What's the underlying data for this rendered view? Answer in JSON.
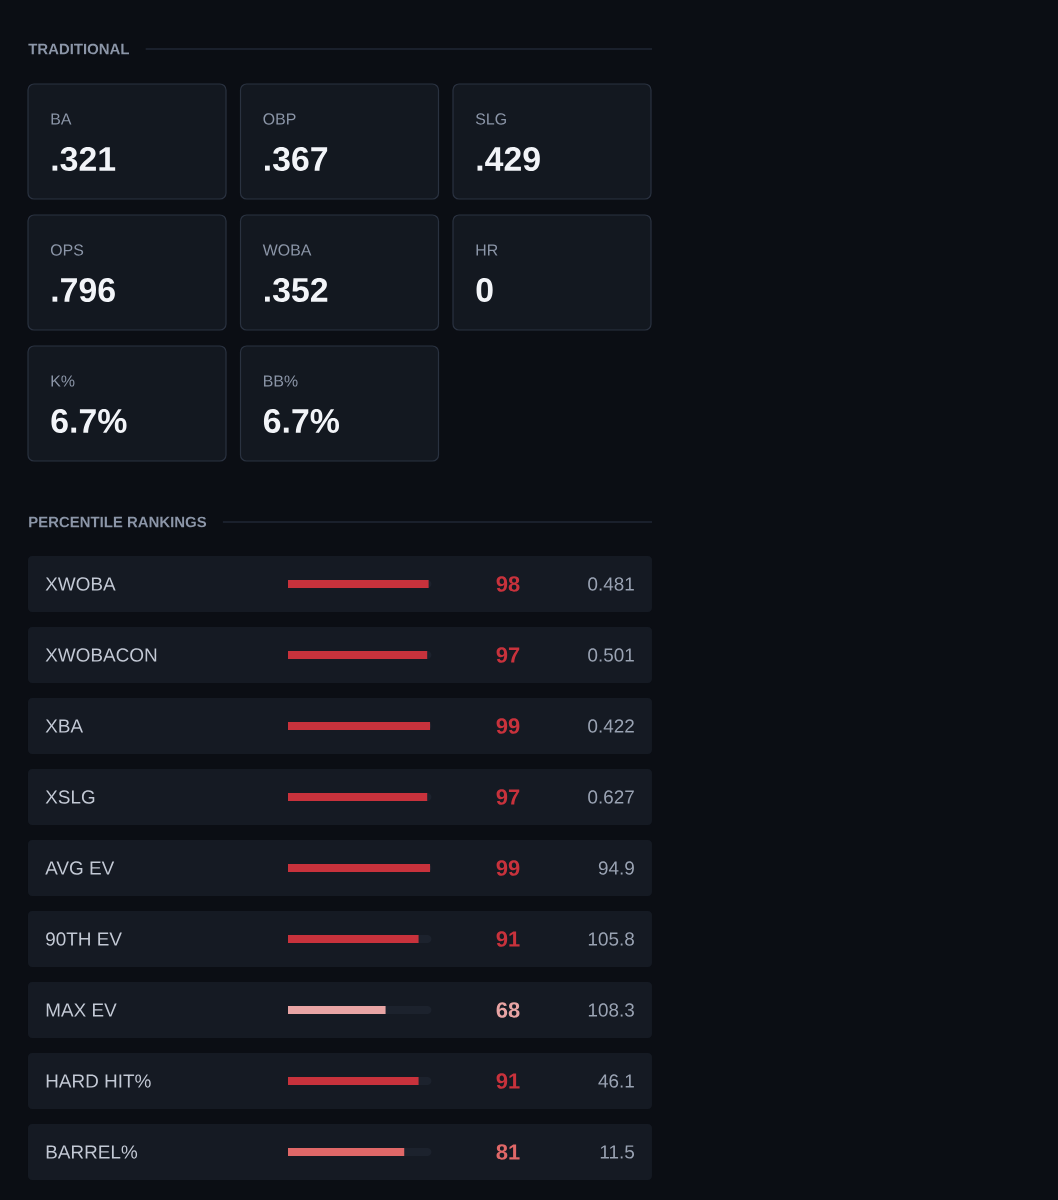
{
  "chart_data": [
    {
      "type": "other",
      "title": "TRADITIONAL",
      "categories": [
        "BA",
        "OBP",
        "SLG",
        "OPS",
        "WOBA",
        "HR",
        "K%",
        "BB%"
      ],
      "value_labels": [
        ".321",
        ".367",
        ".429",
        ".796",
        ".352",
        "0",
        "6.7%",
        "6.7%"
      ]
    },
    {
      "type": "bar",
      "orientation": "horizontal",
      "title": "PERCENTILE RANKINGS",
      "categories": [
        "XWOBA",
        "XWOBACON",
        "XBA",
        "XSLG",
        "AVG EV",
        "90TH EV",
        "MAX EV",
        "HARD HIT%",
        "BARREL%"
      ],
      "values": [
        98,
        97,
        99,
        97,
        99,
        91,
        68,
        91,
        81
      ],
      "colors": [
        "#c8323c",
        "#c8323c",
        "#c8323c",
        "#c8323c",
        "#c8323c",
        "#c8323c",
        "#e8a4a4",
        "#c8323c",
        "#e06868"
      ],
      "xlim": [
        0,
        100
      ],
      "data_labels": true,
      "tick_labels": "y",
      "annotations": [
        "0.481",
        "0.501",
        "0.422",
        "0.627",
        "94.9",
        "105.8",
        "108.3",
        "46.1",
        "11.5"
      ]
    }
  ]
}
